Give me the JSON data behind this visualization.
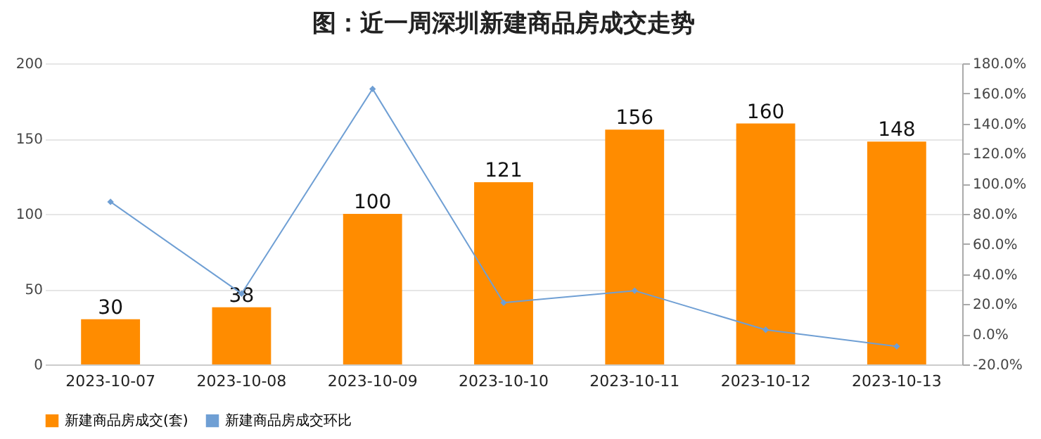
{
  "chart_data": {
    "type": "bar",
    "title": "图：近一周深圳新建商品房成交走势",
    "categories": [
      "2023-10-07",
      "2023-10-08",
      "2023-10-09",
      "2023-10-10",
      "2023-10-11",
      "2023-10-12",
      "2023-10-13"
    ],
    "series": [
      {
        "name": "新建商品房成交(套)",
        "color": "#ff8c00",
        "values": [
          30,
          38,
          100,
          121,
          156,
          160,
          148
        ],
        "value_labels": [
          "30",
          "38",
          "100",
          "121",
          "156",
          "160",
          "148"
        ]
      },
      {
        "name": "新建商品房成交环比",
        "type": "line",
        "axis": "y2",
        "color": "#6f9fd4",
        "marker": "diamond",
        "values": [
          88,
          27,
          163,
          21,
          29,
          3,
          -8
        ]
      }
    ],
    "ylim": [
      0,
      200
    ],
    "yticks": [
      0,
      50,
      100,
      150,
      200
    ],
    "y2lim": [
      -20,
      180
    ],
    "y2ticks": [
      {
        "value": -20,
        "label": "-20.0%"
      },
      {
        "value": 0,
        "label": "0.0%"
      },
      {
        "value": 20,
        "label": "20.0%"
      },
      {
        "value": 40,
        "label": "40.0%"
      },
      {
        "value": 60,
        "label": "60.0%"
      },
      {
        "value": 80,
        "label": "80.0%"
      },
      {
        "value": 100,
        "label": "100.0%"
      },
      {
        "value": 120,
        "label": "120.0%"
      },
      {
        "value": 140,
        "label": "140.0%"
      },
      {
        "value": 160,
        "label": "160.0%"
      },
      {
        "value": 180,
        "label": "180.0%"
      }
    ],
    "grid": "y",
    "legend": "bottom"
  }
}
